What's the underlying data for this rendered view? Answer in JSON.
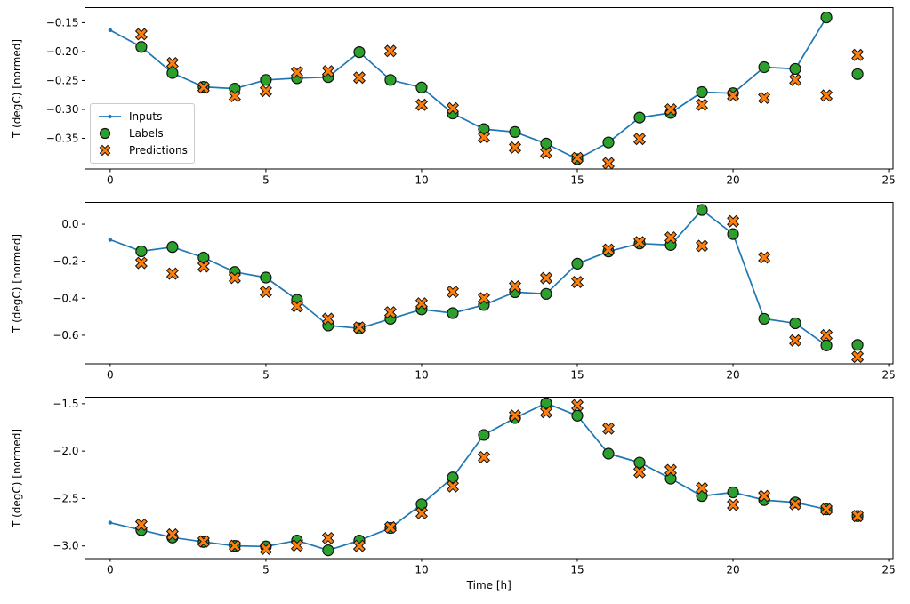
{
  "figure": {
    "xlabel": "Time [h]",
    "ylabel": "T (degC) [normed]",
    "background": "#ffffff",
    "axis_color": "#000000",
    "legend": {
      "position": "upper-left-of-first-subplot",
      "items": [
        {
          "label": "Inputs",
          "icon": "line-dot-icon",
          "color": "#1f77b4"
        },
        {
          "label": "Labels",
          "icon": "circle-icon",
          "color": "#2ca02c"
        },
        {
          "label": "Predictions",
          "icon": "x-icon",
          "color": "#ff7f0e"
        }
      ]
    }
  },
  "chart_data": [
    {
      "type": "line",
      "subplot": 1,
      "ylabel": "T (degC) [normed]",
      "grid": false,
      "legend_visible": true,
      "xlim": [
        -0.81,
        25.14
      ],
      "ylim": [
        -0.403,
        -0.124
      ],
      "xticks": [
        0,
        5,
        10,
        15,
        20,
        25
      ],
      "xtick_labels": [
        "0",
        "5",
        "10",
        "15",
        "20",
        "25"
      ],
      "yticks": [
        -0.15,
        -0.2,
        -0.25,
        -0.3,
        -0.35
      ],
      "ytick_labels": [
        "−0.15",
        "−0.20",
        "−0.25",
        "−0.30",
        "−0.35"
      ],
      "series": [
        {
          "name": "Inputs",
          "type": "line",
          "marker": "dot",
          "color": "#1f77b4",
          "x": [
            0,
            1,
            2,
            3,
            4,
            5,
            6,
            7,
            8,
            9,
            10,
            11,
            12,
            13,
            14,
            15,
            16,
            17,
            18,
            19,
            20,
            21,
            22,
            23
          ],
          "y": [
            -0.163,
            -0.192,
            -0.237,
            -0.261,
            -0.264,
            -0.249,
            -0.246,
            -0.244,
            -0.201,
            -0.249,
            -0.262,
            -0.307,
            -0.334,
            -0.339,
            -0.359,
            -0.386,
            -0.357,
            -0.314,
            -0.306,
            -0.27,
            -0.272,
            -0.227,
            -0.23,
            -0.141
          ]
        },
        {
          "name": "Labels",
          "type": "scatter",
          "marker": "circle",
          "color": "#2ca02c",
          "edge_color": "#111111",
          "x": [
            1,
            2,
            3,
            4,
            5,
            6,
            7,
            8,
            9,
            10,
            11,
            12,
            13,
            14,
            15,
            16,
            17,
            18,
            19,
            20,
            21,
            22,
            23,
            24
          ],
          "y": [
            -0.192,
            -0.237,
            -0.261,
            -0.264,
            -0.249,
            -0.246,
            -0.244,
            -0.201,
            -0.249,
            -0.262,
            -0.307,
            -0.334,
            -0.339,
            -0.359,
            -0.386,
            -0.357,
            -0.314,
            -0.306,
            -0.27,
            -0.272,
            -0.227,
            -0.23,
            -0.141,
            -0.239
          ]
        },
        {
          "name": "Predictions",
          "type": "scatter",
          "marker": "X",
          "color": "#ff7f0e",
          "edge_color": "#111111",
          "x": [
            1,
            2,
            3,
            4,
            5,
            6,
            7,
            8,
            9,
            10,
            11,
            12,
            13,
            14,
            15,
            16,
            17,
            18,
            19,
            20,
            21,
            22,
            23,
            24
          ],
          "y": [
            -0.17,
            -0.22,
            -0.262,
            -0.277,
            -0.268,
            -0.236,
            -0.234,
            -0.245,
            -0.199,
            -0.292,
            -0.298,
            -0.348,
            -0.366,
            -0.375,
            -0.384,
            -0.393,
            -0.351,
            -0.3,
            -0.292,
            -0.276,
            -0.28,
            -0.249,
            -0.276,
            -0.206
          ]
        }
      ]
    },
    {
      "type": "line",
      "subplot": 2,
      "ylabel": "T (degC) [normed]",
      "grid": false,
      "legend_visible": false,
      "xlim": [
        -0.81,
        25.14
      ],
      "ylim": [
        -0.754,
        0.118
      ],
      "xticks": [
        0,
        5,
        10,
        15,
        20,
        25
      ],
      "xtick_labels": [
        "0",
        "5",
        "10",
        "15",
        "20",
        "25"
      ],
      "yticks": [
        0.0,
        -0.2,
        -0.4,
        -0.6
      ],
      "ytick_labels": [
        "0.0",
        "−0.2",
        "−0.4",
        "−0.6"
      ],
      "series": [
        {
          "name": "Inputs",
          "type": "line",
          "marker": "dot",
          "color": "#1f77b4",
          "x": [
            0,
            1,
            2,
            3,
            4,
            5,
            6,
            7,
            8,
            9,
            10,
            11,
            12,
            13,
            14,
            15,
            16,
            17,
            18,
            19,
            20,
            21,
            22,
            23
          ],
          "y": [
            -0.084,
            -0.146,
            -0.123,
            -0.18,
            -0.258,
            -0.288,
            -0.408,
            -0.547,
            -0.563,
            -0.511,
            -0.46,
            -0.48,
            -0.436,
            -0.367,
            -0.376,
            -0.213,
            -0.147,
            -0.104,
            -0.112,
            0.077,
            -0.053,
            -0.511,
            -0.535,
            -0.655
          ]
        },
        {
          "name": "Labels",
          "type": "scatter",
          "marker": "circle",
          "color": "#2ca02c",
          "edge_color": "#111111",
          "x": [
            1,
            2,
            3,
            4,
            5,
            6,
            7,
            8,
            9,
            10,
            11,
            12,
            13,
            14,
            15,
            16,
            17,
            18,
            19,
            20,
            21,
            22,
            23,
            24
          ],
          "y": [
            -0.146,
            -0.123,
            -0.18,
            -0.258,
            -0.288,
            -0.408,
            -0.547,
            -0.563,
            -0.511,
            -0.46,
            -0.48,
            -0.436,
            -0.367,
            -0.376,
            -0.213,
            -0.147,
            -0.104,
            -0.112,
            0.077,
            -0.053,
            -0.511,
            -0.535,
            -0.655,
            -0.652
          ]
        },
        {
          "name": "Predictions",
          "type": "scatter",
          "marker": "X",
          "color": "#ff7f0e",
          "edge_color": "#111111",
          "x": [
            1,
            2,
            3,
            4,
            5,
            6,
            7,
            8,
            9,
            10,
            11,
            12,
            13,
            14,
            15,
            16,
            17,
            18,
            19,
            20,
            21,
            22,
            23,
            24
          ],
          "y": [
            -0.209,
            -0.267,
            -0.228,
            -0.29,
            -0.365,
            -0.443,
            -0.511,
            -0.558,
            -0.476,
            -0.428,
            -0.365,
            -0.4,
            -0.336,
            -0.291,
            -0.312,
            -0.137,
            -0.097,
            -0.072,
            -0.117,
            0.016,
            -0.18,
            -0.628,
            -0.6,
            -0.716
          ]
        }
      ]
    },
    {
      "type": "line",
      "subplot": 3,
      "ylabel": "T (degC) [normed]",
      "xlabel": "Time [h]",
      "grid": false,
      "legend_visible": false,
      "xlim": [
        -0.81,
        25.14
      ],
      "ylim": [
        -3.134,
        -1.431
      ],
      "xticks": [
        0,
        5,
        10,
        15,
        20,
        25
      ],
      "xtick_labels": [
        "0",
        "5",
        "10",
        "15",
        "20",
        "25"
      ],
      "yticks": [
        -1.5,
        -2.0,
        -2.5,
        -3.0
      ],
      "ytick_labels": [
        "−1.5",
        "−2.0",
        "−2.5",
        "−3.0"
      ],
      "series": [
        {
          "name": "Inputs",
          "type": "line",
          "marker": "dot",
          "color": "#1f77b4",
          "x": [
            0,
            1,
            2,
            3,
            4,
            5,
            6,
            7,
            8,
            9,
            10,
            11,
            12,
            13,
            14,
            15,
            16,
            17,
            18,
            19,
            20,
            21,
            22,
            23
          ],
          "y": [
            -2.755,
            -2.833,
            -2.911,
            -2.958,
            -2.999,
            -3.005,
            -2.943,
            -3.046,
            -2.943,
            -2.811,
            -2.56,
            -2.278,
            -1.829,
            -1.651,
            -1.494,
            -1.626,
            -2.027,
            -2.121,
            -2.29,
            -2.473,
            -2.435,
            -2.516,
            -2.541,
            -2.614
          ]
        },
        {
          "name": "Labels",
          "type": "scatter",
          "marker": "circle",
          "color": "#2ca02c",
          "edge_color": "#111111",
          "x": [
            1,
            2,
            3,
            4,
            5,
            6,
            7,
            8,
            9,
            10,
            11,
            12,
            13,
            14,
            15,
            16,
            17,
            18,
            19,
            20,
            21,
            22,
            23,
            24
          ],
          "y": [
            -2.833,
            -2.911,
            -2.958,
            -2.999,
            -3.005,
            -2.943,
            -3.046,
            -2.943,
            -2.811,
            -2.56,
            -2.278,
            -1.829,
            -1.651,
            -1.494,
            -1.626,
            -2.027,
            -2.121,
            -2.29,
            -2.473,
            -2.435,
            -2.516,
            -2.541,
            -2.614,
            -2.685
          ]
        },
        {
          "name": "Predictions",
          "type": "scatter",
          "marker": "X",
          "color": "#ff7f0e",
          "edge_color": "#111111",
          "x": [
            1,
            2,
            3,
            4,
            5,
            6,
            7,
            8,
            9,
            10,
            11,
            12,
            13,
            14,
            15,
            16,
            17,
            18,
            19,
            20,
            21,
            22,
            23,
            24
          ],
          "y": [
            -2.777,
            -2.88,
            -2.952,
            -2.999,
            -3.031,
            -2.996,
            -2.918,
            -2.999,
            -2.805,
            -2.654,
            -2.372,
            -2.064,
            -1.625,
            -1.588,
            -1.516,
            -1.761,
            -2.222,
            -2.2,
            -2.391,
            -2.567,
            -2.473,
            -2.56,
            -2.614,
            -2.685
          ]
        }
      ]
    }
  ]
}
